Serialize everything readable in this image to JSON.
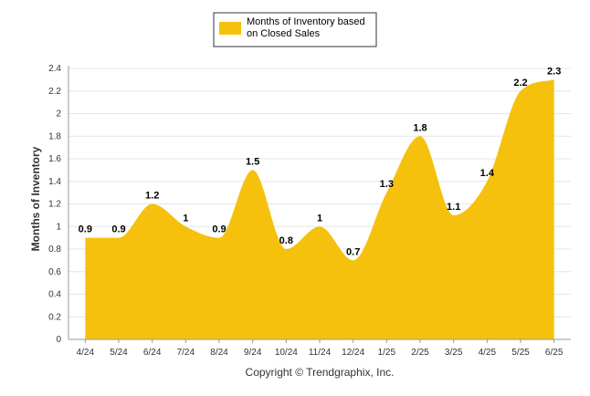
{
  "chart_data": {
    "type": "area",
    "categories": [
      "4/24",
      "5/24",
      "6/24",
      "7/24",
      "8/24",
      "9/24",
      "10/24",
      "11/24",
      "12/24",
      "1/25",
      "2/25",
      "3/25",
      "4/25",
      "5/25",
      "6/25"
    ],
    "series": [
      {
        "name": "Months of Inventory based on Closed Sales",
        "values": [
          0.9,
          0.9,
          1.2,
          1,
          0.9,
          1.5,
          0.8,
          1,
          0.7,
          1.3,
          1.8,
          1.1,
          1.4,
          2.2,
          2.3
        ]
      }
    ],
    "data_labels": [
      "0.9",
      "0.9",
      "1.2",
      "1",
      "0.9",
      "1.5",
      "0.8",
      "1",
      "0.7",
      "1.3",
      "1.8",
      "1.1",
      "1.4",
      "2.2",
      "2.3"
    ],
    "ylabel": "Months of Inventory",
    "xlabel": "",
    "ylim": [
      0,
      2.4
    ],
    "yticks": [
      "0",
      "0.2",
      "0.4",
      "0.6",
      "0.8",
      "1",
      "1.2",
      "1.4",
      "1.6",
      "1.8",
      "2",
      "2.2",
      "2.4"
    ],
    "grid": true,
    "legend_position": "top-center",
    "legend_lines": [
      "Months of Inventory based",
      "on Closed Sales"
    ],
    "colors": {
      "area": "#F6C10C",
      "grid": "#E6E6E6",
      "axis": "#999999"
    }
  },
  "footer": {
    "copyright": "Copyright © Trendgraphix, Inc."
  }
}
